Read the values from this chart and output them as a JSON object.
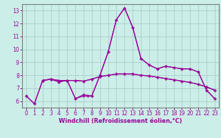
{
  "xlabel": "Windchill (Refroidissement éolien,°C)",
  "background_color": "#cceee8",
  "grid_color": "#aacccc",
  "line_color": "#990099",
  "xlim": [
    -0.5,
    23.5
  ],
  "ylim": [
    5.5,
    13.5
  ],
  "yticks": [
    6,
    7,
    8,
    9,
    10,
    11,
    12,
    13
  ],
  "xticks": [
    0,
    1,
    2,
    3,
    4,
    5,
    6,
    7,
    8,
    9,
    10,
    11,
    12,
    13,
    14,
    15,
    16,
    17,
    18,
    19,
    20,
    21,
    22,
    23
  ],
  "series1_x": [
    0,
    1,
    2,
    3,
    4,
    5,
    6,
    7,
    8,
    9,
    10,
    11,
    12,
    13,
    14,
    15,
    16,
    17,
    18,
    19,
    20,
    21,
    22,
    23
  ],
  "series1_y": [
    6.4,
    5.8,
    7.6,
    7.7,
    7.5,
    7.6,
    6.2,
    6.5,
    6.4,
    8.0,
    9.8,
    12.3,
    13.2,
    11.7,
    9.3,
    8.8,
    8.5,
    8.7,
    8.6,
    8.5,
    8.5,
    8.25,
    6.85,
    6.2
  ],
  "series2_x": [
    0,
    1,
    2,
    3,
    4,
    5,
    6,
    7,
    8,
    9,
    10,
    11,
    12,
    13,
    14,
    15,
    16,
    17,
    18,
    19,
    20,
    21,
    22,
    23
  ],
  "series2_y": [
    6.4,
    5.8,
    7.6,
    7.7,
    7.6,
    7.6,
    7.6,
    7.55,
    7.7,
    7.9,
    8.0,
    8.1,
    8.1,
    8.1,
    8.0,
    7.95,
    7.85,
    7.75,
    7.65,
    7.55,
    7.45,
    7.3,
    7.1,
    6.85
  ],
  "series3_x": [
    2,
    3,
    4,
    5,
    6,
    7,
    7.5,
    8,
    9,
    10,
    11,
    12,
    13,
    14,
    15,
    16,
    17,
    18,
    19,
    20,
    21,
    22,
    23
  ],
  "series3_y": [
    7.6,
    7.7,
    7.5,
    7.6,
    6.2,
    6.4,
    6.4,
    6.4,
    8.0,
    9.8,
    12.3,
    13.2,
    11.7,
    9.3,
    8.8,
    8.5,
    8.7,
    8.6,
    8.5,
    8.5,
    8.25,
    6.85,
    6.2
  ],
  "series4_x": [
    2,
    3,
    4,
    5,
    6,
    7,
    8,
    9,
    10,
    11,
    12,
    13,
    14,
    15,
    16,
    17,
    18,
    19,
    20,
    21,
    22,
    23
  ],
  "series4_y": [
    7.6,
    7.7,
    7.6,
    7.6,
    7.6,
    7.55,
    7.7,
    7.9,
    8.0,
    8.1,
    8.1,
    8.1,
    8.0,
    7.95,
    7.85,
    7.75,
    7.65,
    7.55,
    7.45,
    7.3,
    7.1,
    6.85
  ]
}
